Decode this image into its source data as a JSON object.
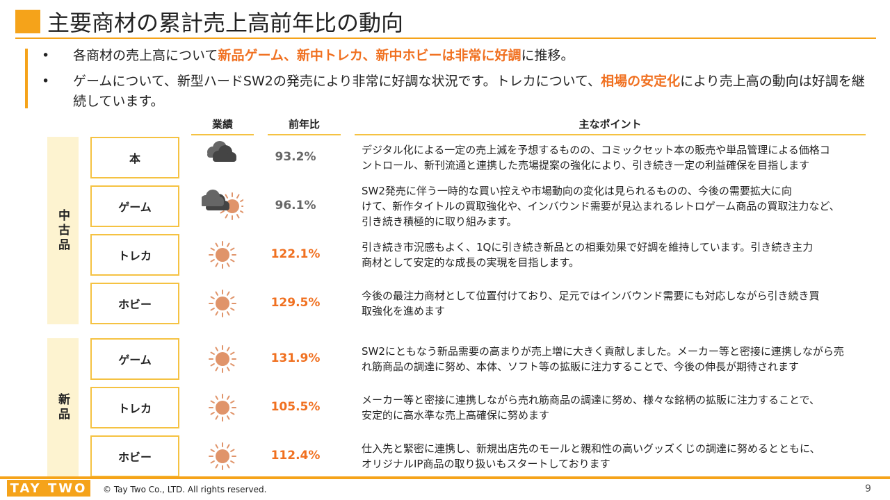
{
  "header": {
    "title": "主要商材の累計売上高前年比の動向"
  },
  "bullets": [
    {
      "parts": [
        {
          "text": "各商材の売上高について",
          "emphasis": false
        },
        {
          "text": "新品ゲーム、新中トレカ、新中ホビーは非常に好調",
          "emphasis": true
        },
        {
          "text": "に推移。",
          "emphasis": false
        }
      ]
    },
    {
      "parts": [
        {
          "text": "ゲームについて、新型ハードSW2の発売により非常に好調な状況です。トレカについて、",
          "emphasis": false
        },
        {
          "text": "相場の安定化",
          "emphasis": true
        },
        {
          "text": "により売上高の動向は好調を継続しています。",
          "emphasis": false
        }
      ]
    }
  ],
  "table": {
    "columns": [
      "業績",
      "前年比",
      "主なポイント"
    ],
    "groups": [
      {
        "label": "中古品",
        "rows": [
          {
            "name": "本",
            "weather": "cloudy",
            "ratio": "93.2%",
            "up": false,
            "lines": [
              "デジタル化による一定の売上減を予想するものの、コミックセット本の販売や単品管理による価格コ",
              "ントロール、新刊流通と連携した売場提案の強化により、引き続き一定の利益確保を目指します"
            ]
          },
          {
            "name": "ゲーム",
            "weather": "partly",
            "ratio": "96.1%",
            "up": false,
            "lines": [
              "SW2発売に伴う一時的な買い控えや市場動向の変化は見られるものの、今後の需要拡大に向",
              "けて、新作タイトルの買取強化や、インバウンド需要が見込まれるレトロゲーム商品の買取注力など、",
              "引き続き積極的に取り組みます。"
            ]
          },
          {
            "name": "トレカ",
            "weather": "sunny",
            "ratio": "122.1%",
            "up": true,
            "lines": [
              "引き続き市況感もよく、1Qに引き続き新品との相乗効果で好調を維持しています。引き続き主力",
              "商材として安定的な成長の実現を目指します。"
            ]
          },
          {
            "name": "ホビー",
            "weather": "sunny",
            "ratio": "129.5%",
            "up": true,
            "lines": [
              "今後の最注力商材として位置付けており、足元ではインバウンド需要にも対応しながら引き続き買",
              "取強化を進めます"
            ]
          }
        ]
      },
      {
        "label": "新品",
        "rows": [
          {
            "name": "ゲーム",
            "weather": "sunny",
            "ratio": "131.9%",
            "up": true,
            "lines": [
              "SW2にともなう新品需要の高まりが売上増に大きく貢献しました。メーカー等と密接に連携しながら売",
              "れ筋商品の調達に努め、本体、ソフト等の拡販に注力することで、今後の伸長が期待されます"
            ]
          },
          {
            "name": "トレカ",
            "weather": "sunny",
            "ratio": "105.5%",
            "up": true,
            "lines": [
              "メーカー等と密接に連携しながら売れ筋商品の調達に努め、様々な銘柄の拡販に注力することで、",
              "安定的に高水準な売上高確保に努めます"
            ]
          },
          {
            "name": "ホビー",
            "weather": "sunny",
            "ratio": "112.4%",
            "up": true,
            "lines": [
              "仕入先と緊密に連携し、新規出店先のモールと親和性の高いグッズくじの調達に努めるとともに、",
              "オリジナルIP商品の取り扱いもスタートしております"
            ]
          }
        ]
      }
    ]
  },
  "footer": {
    "logo": "TAY TWO",
    "copyright": "© Tay Two Co., LTD. All rights reserved.",
    "page": "9"
  }
}
